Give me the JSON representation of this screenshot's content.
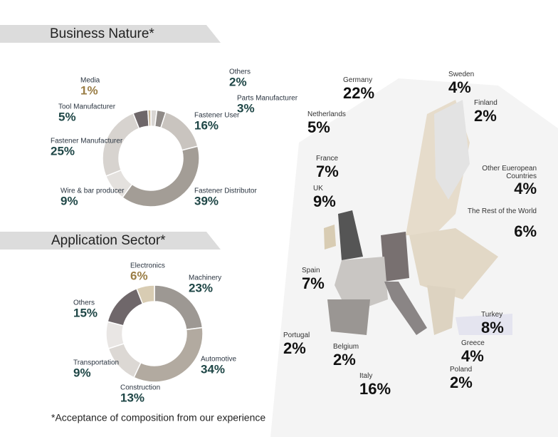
{
  "chart_data": [
    {
      "type": "donut",
      "title": "Business Nature*",
      "categories": [
        "Others",
        "Parts Manufacturer",
        "Fastener User",
        "Fastener Distributor",
        "Wire & bar producer",
        "Fastener Manufacturer",
        "Tool Manufacturer",
        "Media"
      ],
      "values": [
        2,
        3,
        16,
        39,
        9,
        25,
        5,
        1
      ],
      "value_labels": [
        "2%",
        "3%",
        "16%",
        "39%",
        "9%",
        "25%",
        "5%",
        "1%"
      ],
      "colors": [
        "#d9d6d3",
        "#8f8a87",
        "#c9c4bf",
        "#a39d96",
        "#e4e1de",
        "#d7d3cf",
        "#6e6769",
        "#c8b79a"
      ]
    },
    {
      "type": "donut",
      "title": "Application Sector*",
      "categories": [
        "Machinery",
        "Automotive",
        "Construction",
        "Transportation",
        "Others",
        "Electronics"
      ],
      "values": [
        23,
        34,
        13,
        9,
        15,
        6
      ],
      "value_labels": [
        "23%",
        "34%",
        "13%",
        "9%",
        "15%",
        "6%"
      ],
      "colors": [
        "#9d9893",
        "#b2aaa0",
        "#dcd8d4",
        "#e9e6e4",
        "#6f676a",
        "#d8ccb3"
      ]
    },
    {
      "type": "map",
      "categories": [
        "Germany",
        "Netherlands",
        "France",
        "UK",
        "Spain",
        "Portugal",
        "Belgium",
        "Italy",
        "Sweden",
        "Finland",
        "Other Eueropean Countries",
        "The Rest of the World",
        "Turkey",
        "Greece",
        "Poland"
      ],
      "values": [
        22,
        5,
        7,
        9,
        7,
        2,
        2,
        16,
        4,
        2,
        4,
        6,
        8,
        4,
        2
      ],
      "value_labels": [
        "22%",
        "5%",
        "7%",
        "9%",
        "7%",
        "2%",
        "2%",
        "16%",
        "4%",
        "2%",
        "4%",
        "6%",
        "8%",
        "4%",
        "2%"
      ]
    }
  ],
  "footnote": "*Acceptance of composition from our experience"
}
